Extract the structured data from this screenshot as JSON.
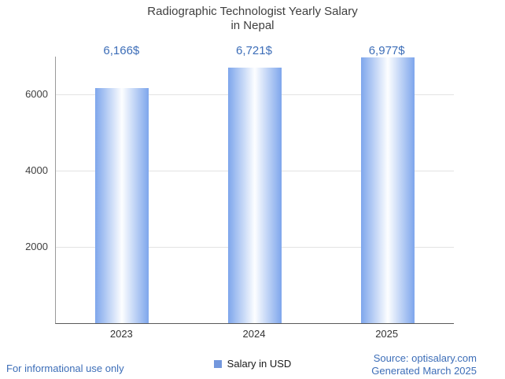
{
  "header": {
    "title_line1": "Radiographic Technologist Yearly Salary",
    "title_line2": "in Nepal"
  },
  "legend": {
    "label": "Salary in USD"
  },
  "footer": {
    "left": "For informational use only",
    "source": "Source: optisalary.com",
    "generated": "Generated March 2025"
  },
  "chart_data": {
    "type": "bar",
    "title": "Radiographic Technologist Yearly Salary in Nepal",
    "categories": [
      "2023",
      "2024",
      "2025"
    ],
    "values": [
      6166,
      6721,
      6977
    ],
    "value_labels": [
      "6,166$",
      "6,721$",
      "6,977$"
    ],
    "series_name": "Salary in USD",
    "xlabel": "",
    "ylabel": "",
    "ylim": [
      0,
      7000
    ],
    "y_ticks": [
      2000,
      4000,
      6000
    ],
    "grid": true,
    "legend_position": "bottom",
    "colors": {
      "bar_edge": "#7ea6ec",
      "bar_center": "#fdfeff",
      "value_label": "#3d6eb8",
      "legend_marker": "#7397dd",
      "footer_text": "#3d6eb8",
      "gridline": "#e3e3e3"
    }
  }
}
